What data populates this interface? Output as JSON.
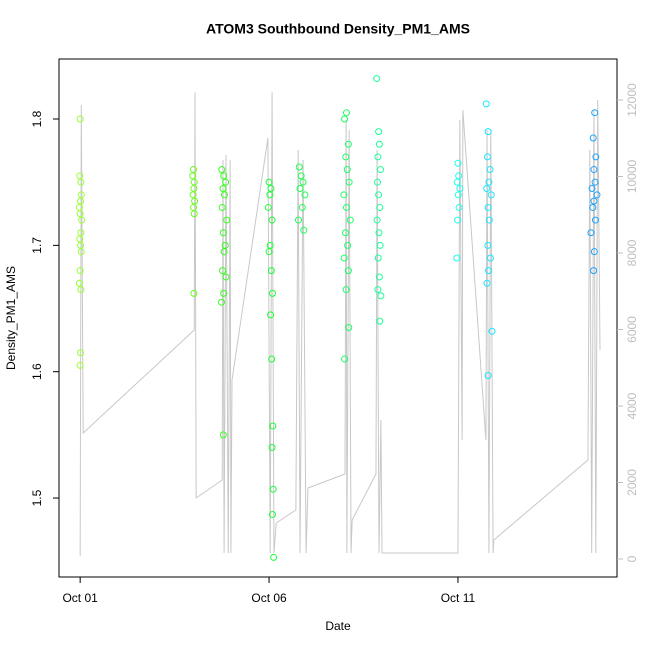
{
  "chart_data": {
    "type": "scatter",
    "title": "ATOM3 Southbound Density_PM1_AMS",
    "x_label": "Date",
    "y_label": "Density_PM1_AMS",
    "xlim": [
      0.44,
      15.21
    ],
    "xticks": [
      {
        "value": 1,
        "label": "Oct 01"
      },
      {
        "value": 6,
        "label": "Oct 06"
      },
      {
        "value": 11,
        "label": "Oct 11"
      }
    ],
    "ylim": [
      1.4375,
      1.8475
    ],
    "yticks": [
      1.5,
      1.6,
      1.7,
      1.8
    ],
    "y2lim": [
      -471,
      13072
    ],
    "y2ticks": [
      0,
      2000,
      4000,
      6000,
      8000,
      10000,
      12000
    ],
    "y2_color": "#bebebe",
    "series": [
      {
        "color": "#99ff33",
        "x": [
          1.0,
          0.99,
          1.02,
          1.03,
          1.01,
          0.98,
          1.0,
          1.04,
          1.02,
          0.99,
          1.01,
          1.03,
          1.0,
          0.98,
          1.02,
          1.01,
          1.0
        ],
        "values": [
          1.8,
          1.755,
          1.75,
          1.74,
          1.735,
          1.73,
          1.725,
          1.72,
          1.71,
          1.705,
          1.7,
          1.695,
          1.68,
          1.67,
          1.665,
          1.615,
          1.605
        ]
      },
      {
        "color": "#66ff1a",
        "x": [
          4.0,
          3.98,
          4.02,
          4.01,
          3.99,
          4.03,
          4.0,
          4.02,
          4.01
        ],
        "values": [
          1.76,
          1.755,
          1.75,
          1.745,
          1.74,
          1.735,
          1.73,
          1.725,
          1.662
        ]
      },
      {
        "color": "#33ff1a",
        "x": [
          4.75,
          4.8,
          4.85,
          4.78,
          4.82,
          4.76,
          4.88,
          4.79,
          4.84,
          4.81,
          4.77,
          4.86,
          4.8,
          4.74,
          4.79
        ],
        "values": [
          1.76,
          1.755,
          1.75,
          1.745,
          1.74,
          1.73,
          1.72,
          1.71,
          1.7,
          1.695,
          1.68,
          1.675,
          1.662,
          1.655,
          1.55
        ]
      },
      {
        "color": "#1aff33",
        "x": [
          6.0,
          6.05,
          6.02,
          5.98,
          6.08,
          6.03,
          6.0,
          6.06,
          6.09,
          6.04,
          6.07,
          6.1,
          6.08,
          6.11,
          6.09,
          6.12
        ],
        "values": [
          1.75,
          1.745,
          1.74,
          1.73,
          1.72,
          1.7,
          1.695,
          1.68,
          1.662,
          1.645,
          1.61,
          1.557,
          1.54,
          1.507,
          1.487,
          1.453
        ]
      },
      {
        "color": "#1aff4d",
        "x": [
          6.8,
          6.85,
          6.9,
          6.82,
          6.95,
          6.88,
          6.78,
          6.92
        ],
        "values": [
          1.762,
          1.755,
          1.75,
          1.745,
          1.74,
          1.73,
          1.72,
          1.712
        ]
      },
      {
        "color": "#1aff66",
        "x": [
          8.05,
          8.0,
          8.1,
          8.03,
          8.07,
          8.12,
          7.98,
          8.05,
          8.15,
          8.02,
          8.08,
          7.99,
          8.1,
          8.04,
          8.11,
          8.0
        ],
        "values": [
          1.805,
          1.8,
          1.78,
          1.77,
          1.76,
          1.75,
          1.74,
          1.73,
          1.72,
          1.71,
          1.7,
          1.69,
          1.68,
          1.665,
          1.635,
          1.61
        ]
      },
      {
        "color": "#1aff99",
        "x": [
          8.85,
          8.9,
          8.92,
          8.88,
          8.95,
          8.87,
          8.9,
          8.93,
          8.86,
          8.91,
          8.94,
          8.89,
          8.92,
          8.88,
          8.96,
          8.93
        ],
        "values": [
          1.832,
          1.79,
          1.78,
          1.77,
          1.76,
          1.75,
          1.74,
          1.73,
          1.72,
          1.71,
          1.7,
          1.69,
          1.675,
          1.665,
          1.66,
          1.64
        ]
      },
      {
        "color": "#1affee",
        "x": [
          11.0,
          11.02,
          10.98,
          11.05,
          11.01,
          11.03,
          10.99,
          10.97
        ],
        "values": [
          1.765,
          1.755,
          1.75,
          1.745,
          1.74,
          1.73,
          1.72,
          1.69
        ]
      },
      {
        "color": "#1ae6ff",
        "x": [
          11.75,
          11.8,
          11.78,
          11.85,
          11.82,
          11.76,
          11.88,
          11.8,
          11.83,
          11.79,
          11.86,
          11.81,
          11.77,
          11.9,
          11.8
        ],
        "values": [
          1.812,
          1.79,
          1.77,
          1.76,
          1.75,
          1.745,
          1.74,
          1.73,
          1.72,
          1.7,
          1.69,
          1.68,
          1.67,
          1.632,
          1.597
        ]
      },
      {
        "color": "#1aa3ff",
        "x": [
          14.62,
          14.58,
          14.65,
          14.6,
          14.63,
          14.55,
          14.68,
          14.6,
          14.57,
          14.64,
          14.52,
          14.59,
          14.61
        ],
        "values": [
          1.805,
          1.785,
          1.77,
          1.76,
          1.75,
          1.745,
          1.74,
          1.735,
          1.73,
          1.72,
          1.71,
          1.68,
          1.695
        ]
      },
      {
        "type": "line",
        "axis": "y2",
        "color": "#c8c8c8",
        "x": [
          1.0,
          1.03,
          1.08,
          4.02,
          4.04,
          4.07,
          4.76,
          4.78,
          4.81,
          4.86,
          4.92,
          4.97,
          4.99,
          5.02,
          5.97,
          6.03,
          6.08,
          6.13,
          6.19,
          6.71,
          6.77,
          6.82,
          6.9,
          6.98,
          7.03,
          8.01,
          8.04,
          8.06,
          8.12,
          8.17,
          8.2,
          8.83,
          8.86,
          8.91,
          8.96,
          8.99,
          11.0,
          11.05,
          11.11,
          11.13,
          11.74,
          11.77,
          11.82,
          11.87,
          11.93,
          11.95,
          14.44,
          14.49,
          14.54,
          14.6,
          14.65,
          14.7,
          14.76
        ],
        "values": [
          78,
          11869,
          3294,
          5987,
          12200,
          1595,
          2065,
          10431,
          157,
          10562,
          157,
          10431,
          157,
          4680,
          11007,
          157,
          12200,
          157,
          941,
          1281,
          10693,
          157,
          10431,
          157,
          1856,
          2222,
          11477,
          157,
          11216,
          157,
          1020,
          2222,
          10693,
          157,
          3634,
          157,
          157,
          11477,
          3111,
          11739,
          3111,
          11216,
          157,
          11216,
          157,
          497,
          2588,
          10693,
          157,
          11739,
          157,
          12000,
          5464
        ]
      }
    ]
  }
}
